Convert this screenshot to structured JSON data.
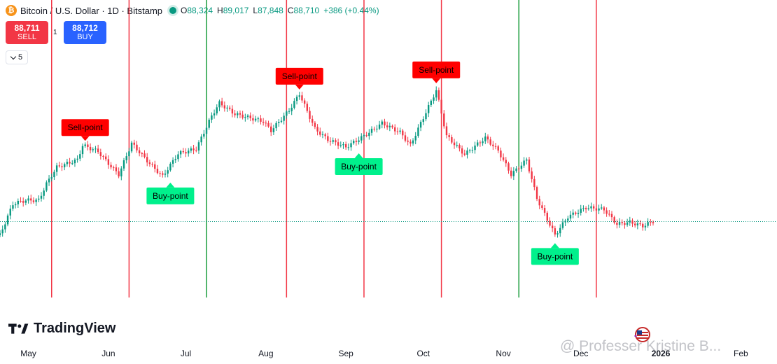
{
  "header": {
    "symbol": "Bitcoin / U.S. Dollar · 1D · Bitstamp",
    "coin_glyph": "₿",
    "ohlc": {
      "o_label": "O",
      "o": "88,324",
      "h_label": "H",
      "h": "89,017",
      "l_label": "L",
      "l": "87,848",
      "c_label": "C",
      "c": "88,710",
      "change": "+386 (+0.44%)"
    }
  },
  "trade": {
    "sell_price": "88,711",
    "sell_label": "SELL",
    "spread": "1",
    "buy_price": "88,712",
    "buy_label": "BUY"
  },
  "indicators": {
    "collapse_count": "5"
  },
  "branding": {
    "logo_text": "TradingView",
    "watermark": "@ Professer Kristine B..."
  },
  "colors": {
    "up": "#089981",
    "down": "#f23645",
    "sell_marker": "#ff0000",
    "buy_marker": "#00f08c",
    "line_red": "#f23645",
    "line_green": "#1a9c3c"
  },
  "chart_data": {
    "type": "candlestick",
    "x_axis": {
      "ticks": [
        "May",
        "Jun",
        "Jul",
        "Aug",
        "Sep",
        "Oct",
        "Nov",
        "Dec",
        "2026",
        "Feb"
      ],
      "range": [
        "2025-04-20",
        "2026-02-15"
      ]
    },
    "y_range": [
      68000,
      130000
    ],
    "current_price": 88710,
    "close_path": [
      [
        "2025-04-20",
        85000
      ],
      [
        "2025-04-25",
        93500
      ],
      [
        "2025-04-30",
        94500
      ],
      [
        "2025-05-05",
        94500
      ],
      [
        "2025-05-08",
        99000
      ],
      [
        "2025-05-12",
        103500
      ],
      [
        "2025-05-20",
        105500
      ],
      [
        "2025-05-22",
        109500
      ],
      [
        "2025-05-28",
        107800
      ],
      [
        "2025-06-01",
        104500
      ],
      [
        "2025-06-05",
        101500
      ],
      [
        "2025-06-10",
        110000
      ],
      [
        "2025-06-17",
        104500
      ],
      [
        "2025-06-22",
        101000
      ],
      [
        "2025-06-28",
        107200
      ],
      [
        "2025-07-05",
        108500
      ],
      [
        "2025-07-11",
        117500
      ],
      [
        "2025-07-14",
        121000
      ],
      [
        "2025-07-20",
        118000
      ],
      [
        "2025-07-31",
        116000
      ],
      [
        "2025-08-03",
        113500
      ],
      [
        "2025-08-10",
        119000
      ],
      [
        "2025-08-14",
        123500
      ],
      [
        "2025-08-20",
        114000
      ],
      [
        "2025-08-25",
        111000
      ],
      [
        "2025-09-01",
        109000
      ],
      [
        "2025-09-08",
        112000
      ],
      [
        "2025-09-15",
        115500
      ],
      [
        "2025-09-22",
        113000
      ],
      [
        "2025-09-26",
        109500
      ],
      [
        "2025-10-02",
        118500
      ],
      [
        "2025-10-06",
        124500
      ],
      [
        "2025-10-10",
        112000
      ],
      [
        "2025-10-17",
        107000
      ],
      [
        "2025-10-25",
        111500
      ],
      [
        "2025-10-30",
        108000
      ],
      [
        "2025-11-04",
        101500
      ],
      [
        "2025-11-10",
        105500
      ],
      [
        "2025-11-14",
        95000
      ],
      [
        "2025-11-21",
        85000
      ],
      [
        "2025-11-26",
        90000
      ],
      [
        "2025-12-03",
        92500
      ],
      [
        "2025-12-10",
        92000
      ],
      [
        "2025-12-15",
        88000
      ],
      [
        "2025-12-20",
        88500
      ],
      [
        "2025-12-25",
        87500
      ],
      [
        "2025-12-29",
        88710
      ]
    ],
    "vertical_lines": [
      {
        "date": "2025-05-10",
        "color": "red"
      },
      {
        "date": "2025-06-09",
        "color": "red"
      },
      {
        "date": "2025-07-09",
        "color": "green"
      },
      {
        "date": "2025-08-09",
        "color": "red"
      },
      {
        "date": "2025-09-08",
        "color": "red"
      },
      {
        "date": "2025-10-08",
        "color": "red"
      },
      {
        "date": "2025-11-07",
        "color": "green"
      },
      {
        "date": "2025-12-07",
        "color": "red"
      }
    ],
    "annotations": [
      {
        "label": "Sell-point",
        "type": "sell",
        "date": "2025-05-23",
        "price": 110500
      },
      {
        "label": "Buy-point",
        "type": "buy",
        "date": "2025-06-25",
        "price": 99500
      },
      {
        "label": "Sell-point",
        "type": "sell",
        "date": "2025-08-14",
        "price": 124500
      },
      {
        "label": "Buy-point",
        "type": "buy",
        "date": "2025-09-06",
        "price": 107500
      },
      {
        "label": "Sell-point",
        "type": "sell",
        "date": "2025-10-06",
        "price": 126200
      },
      {
        "label": "Buy-point",
        "type": "buy",
        "date": "2025-11-21",
        "price": 83000
      }
    ]
  }
}
